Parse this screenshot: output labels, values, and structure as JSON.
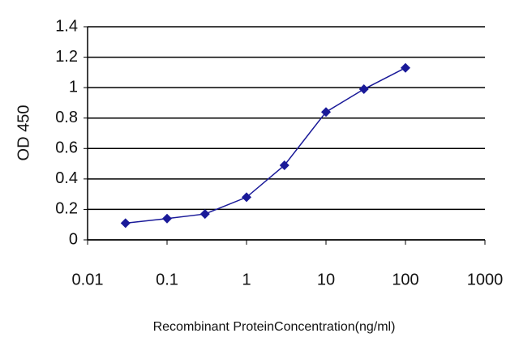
{
  "chart_data": {
    "type": "line",
    "x_label": "Recombinant ProteinConcentration(ng/ml)",
    "y_label": "OD 450",
    "x": [
      0.03,
      0.1,
      0.3,
      1,
      3,
      10,
      30,
      100
    ],
    "series": [
      {
        "color": "#1a1a99",
        "values": [
          0.11,
          0.14,
          0.17,
          0.28,
          0.49,
          0.84,
          0.99,
          1.13
        ]
      }
    ],
    "xscale": "log",
    "xlim": [
      0.01,
      1000
    ],
    "xticks": [
      0.01,
      0.1,
      1,
      10,
      100,
      1000
    ],
    "ylim": [
      0,
      1.4
    ],
    "yticks": [
      0,
      0.2,
      0.4,
      0.6,
      0.8,
      1,
      1.2,
      1.4
    ],
    "grid": true
  }
}
